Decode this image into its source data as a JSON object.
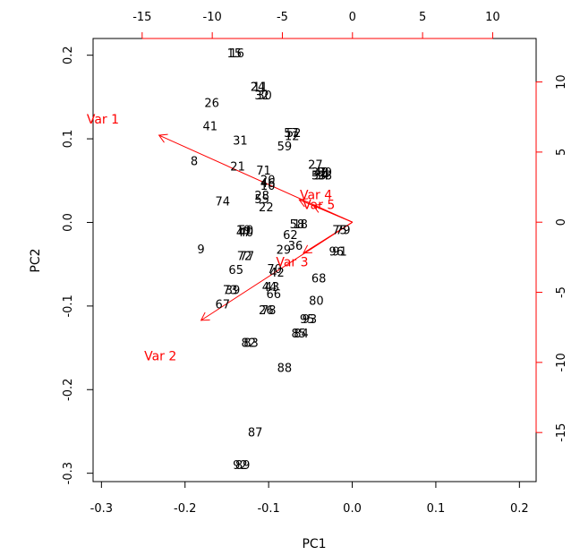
{
  "chart_data": {
    "type": "scatter",
    "subtype": "biplot",
    "xlabel": "PC1",
    "ylabel": "PC2",
    "xlim": [
      -0.31,
      0.22
    ],
    "ylim": [
      -0.31,
      0.22
    ],
    "xticks": [
      -0.3,
      -0.2,
      -0.1,
      0.0,
      0.1,
      0.2
    ],
    "xtick_labels": [
      "-0.3",
      "-0.2",
      "-0.1",
      "0.0",
      "0.1",
      "0.2"
    ],
    "yticks": [
      -0.3,
      -0.2,
      -0.1,
      0.0,
      0.1,
      0.2
    ],
    "ytick_labels": [
      "-0.3",
      "-0.2",
      "-0.1",
      "0.0",
      "0.1",
      "0.2"
    ],
    "loading_xlim": [
      -18.5,
      13.1
    ],
    "loading_ylim": [
      -18.5,
      13.1
    ],
    "top_ticks": [
      -15,
      -10,
      -5,
      0,
      5,
      10
    ],
    "top_tick_labels": [
      "-15",
      "-10",
      "-5",
      "0",
      "5",
      "10"
    ],
    "right_ticks": [
      -15,
      -10,
      -5,
      0,
      5,
      10
    ],
    "right_tick_labels": [
      "-15",
      "-10",
      "-5",
      "0",
      "5",
      "10"
    ],
    "grid": false,
    "colors": {
      "points": "#000000",
      "arrows": "#ff0000",
      "axes": "#000000"
    },
    "observations": [
      {
        "label": "15",
        "x": -0.141,
        "y": 0.201
      },
      {
        "label": "16",
        "x": -0.138,
        "y": 0.201
      },
      {
        "label": "24",
        "x": -0.113,
        "y": 0.161
      },
      {
        "label": "11",
        "x": -0.11,
        "y": 0.161
      },
      {
        "label": "32",
        "x": -0.108,
        "y": 0.151
      },
      {
        "label": "30",
        "x": -0.105,
        "y": 0.151
      },
      {
        "label": "26",
        "x": -0.168,
        "y": 0.142
      },
      {
        "label": "41",
        "x": -0.17,
        "y": 0.114
      },
      {
        "label": "57",
        "x": -0.073,
        "y": 0.106
      },
      {
        "label": "52",
        "x": -0.07,
        "y": 0.106
      },
      {
        "label": "12",
        "x": -0.072,
        "y": 0.102
      },
      {
        "label": "31",
        "x": -0.134,
        "y": 0.097
      },
      {
        "label": "59",
        "x": -0.081,
        "y": 0.09
      },
      {
        "label": "8",
        "x": -0.189,
        "y": 0.072
      },
      {
        "label": "21",
        "x": -0.137,
        "y": 0.066
      },
      {
        "label": "27",
        "x": -0.044,
        "y": 0.068
      },
      {
        "label": "71",
        "x": -0.106,
        "y": 0.061
      },
      {
        "label": "37",
        "x": -0.04,
        "y": 0.059
      },
      {
        "label": "48",
        "x": -0.037,
        "y": 0.059
      },
      {
        "label": "99",
        "x": -0.033,
        "y": 0.059
      },
      {
        "label": "53",
        "x": -0.04,
        "y": 0.055
      },
      {
        "label": "34",
        "x": -0.037,
        "y": 0.055
      },
      {
        "label": "98",
        "x": -0.033,
        "y": 0.055
      },
      {
        "label": "20",
        "x": -0.101,
        "y": 0.05
      },
      {
        "label": "46",
        "x": -0.101,
        "y": 0.046
      },
      {
        "label": "10",
        "x": -0.101,
        "y": 0.043
      },
      {
        "label": "74",
        "x": -0.155,
        "y": 0.024
      },
      {
        "label": "28",
        "x": -0.108,
        "y": 0.031
      },
      {
        "label": "55",
        "x": -0.108,
        "y": 0.027
      },
      {
        "label": "22",
        "x": -0.103,
        "y": 0.017
      },
      {
        "label": "58",
        "x": -0.066,
        "y": -0.003
      },
      {
        "label": "18",
        "x": -0.062,
        "y": -0.003
      },
      {
        "label": "19",
        "x": -0.13,
        "y": -0.01
      },
      {
        "label": "50",
        "x": -0.127,
        "y": -0.01
      },
      {
        "label": "47",
        "x": -0.13,
        "y": -0.013
      },
      {
        "label": "40",
        "x": -0.127,
        "y": -0.013
      },
      {
        "label": "62",
        "x": -0.074,
        "y": -0.016
      },
      {
        "label": "75",
        "x": -0.015,
        "y": -0.01
      },
      {
        "label": "79",
        "x": -0.011,
        "y": -0.01
      },
      {
        "label": "36",
        "x": -0.068,
        "y": -0.029
      },
      {
        "label": "29",
        "x": -0.082,
        "y": -0.034
      },
      {
        "label": "9",
        "x": -0.181,
        "y": -0.033
      },
      {
        "label": "96",
        "x": -0.019,
        "y": -0.036
      },
      {
        "label": "91",
        "x": -0.015,
        "y": -0.036
      },
      {
        "label": "72",
        "x": -0.129,
        "y": -0.041
      },
      {
        "label": "77",
        "x": -0.126,
        "y": -0.041
      },
      {
        "label": "65",
        "x": -0.139,
        "y": -0.058
      },
      {
        "label": "70",
        "x": -0.093,
        "y": -0.057
      },
      {
        "label": "42",
        "x": -0.09,
        "y": -0.061
      },
      {
        "label": "68",
        "x": -0.04,
        "y": -0.068
      },
      {
        "label": "44",
        "x": -0.099,
        "y": -0.078
      },
      {
        "label": "43",
        "x": -0.096,
        "y": -0.078
      },
      {
        "label": "73",
        "x": -0.146,
        "y": -0.082
      },
      {
        "label": "39",
        "x": -0.143,
        "y": -0.082
      },
      {
        "label": "66",
        "x": -0.094,
        "y": -0.087
      },
      {
        "label": "80",
        "x": -0.043,
        "y": -0.095
      },
      {
        "label": "67",
        "x": -0.155,
        "y": -0.099
      },
      {
        "label": "26",
        "x": -0.103,
        "y": -0.106
      },
      {
        "label": "78",
        "x": -0.1,
        "y": -0.106
      },
      {
        "label": "95",
        "x": -0.054,
        "y": -0.117
      },
      {
        "label": "93",
        "x": -0.051,
        "y": -0.117
      },
      {
        "label": "85",
        "x": -0.064,
        "y": -0.134
      },
      {
        "label": "84",
        "x": -0.061,
        "y": -0.134
      },
      {
        "label": "82",
        "x": -0.124,
        "y": -0.145
      },
      {
        "label": "83",
        "x": -0.121,
        "y": -0.145
      },
      {
        "label": "88",
        "x": -0.081,
        "y": -0.175
      },
      {
        "label": "87",
        "x": -0.116,
        "y": -0.252
      },
      {
        "label": "92",
        "x": -0.134,
        "y": -0.291
      },
      {
        "label": "89",
        "x": -0.131,
        "y": -0.291
      }
    ],
    "loadings": [
      {
        "name": "Var 1",
        "x": -13.8,
        "y": 6.2
      },
      {
        "name": "Var 2",
        "x": -10.8,
        "y": -7.0
      },
      {
        "name": "Var 3",
        "x": -3.5,
        "y": -2.2
      },
      {
        "name": "Var 4",
        "x": -3.8,
        "y": 1.6
      },
      {
        "name": "Var 5",
        "x": -2.8,
        "y": 1.2
      }
    ],
    "loading_label_positions": [
      {
        "name": "Var 1",
        "x": -17.8,
        "y": 7.3
      },
      {
        "name": "Var 2",
        "x": -13.7,
        "y": -9.6
      },
      {
        "name": "Var 3",
        "x": -4.3,
        "y": -2.9
      },
      {
        "name": "Var 4",
        "x": -2.6,
        "y": 1.9
      },
      {
        "name": "Var 5",
        "x": -2.4,
        "y": 1.2
      }
    ]
  }
}
